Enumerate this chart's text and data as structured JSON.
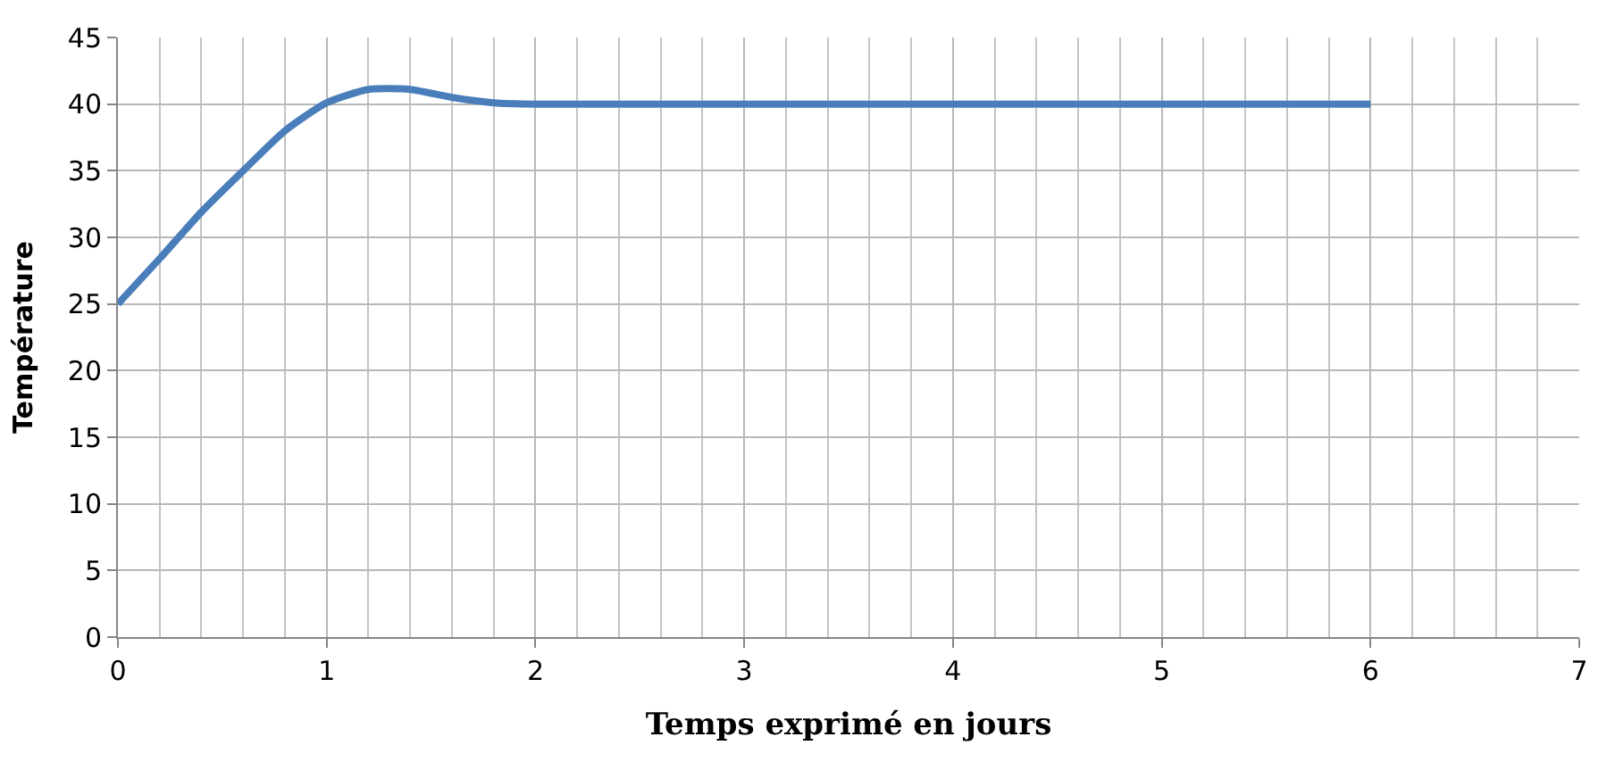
{
  "chart_data": {
    "type": "line",
    "xlabel": "Temps exprimé en jours",
    "ylabel": "Température",
    "x": [
      0,
      0.2,
      0.4,
      0.6,
      0.8,
      1.0,
      1.2,
      1.4,
      1.6,
      1.8,
      2,
      3,
      4,
      5,
      6
    ],
    "series": [
      {
        "color": "#4a7ebb",
        "values": [
          25,
          28.4,
          31.9,
          35,
          38,
          40.1,
          41.1,
          41.1,
          40.5,
          40.1,
          40,
          40,
          40,
          40,
          40
        ]
      }
    ],
    "xlim": [
      0,
      7
    ],
    "xticks": [
      0,
      1,
      2,
      3,
      4,
      5,
      6,
      7
    ],
    "ylim": [
      0,
      45
    ],
    "yticks": [
      0,
      5,
      10,
      15,
      20,
      25,
      30,
      35,
      40,
      45
    ],
    "grid": true,
    "marker": "none",
    "line_style": "solid"
  }
}
